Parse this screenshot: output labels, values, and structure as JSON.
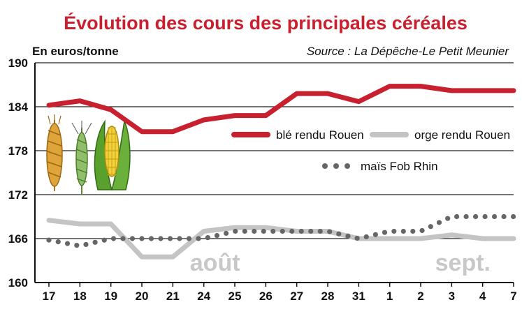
{
  "chart_data": {
    "type": "line",
    "title": "Évolution des cours des principales céréales",
    "unit_label": "En euros/tonne",
    "source": "Source : La Dépêche-Le Petit Meunier",
    "categories": [
      "17",
      "18",
      "19",
      "20",
      "21",
      "24",
      "25",
      "26",
      "27",
      "28",
      "31",
      "1",
      "2",
      "3",
      "4",
      "7"
    ],
    "month_labels": [
      {
        "label": "août",
        "at_category": "24"
      },
      {
        "label": "sept.",
        "at_category": "3"
      }
    ],
    "ylim": [
      160,
      190
    ],
    "yticks": [
      160,
      166,
      172,
      178,
      184,
      190
    ],
    "grid": true,
    "legend_placement": "center-right",
    "series": [
      {
        "name": "blé rendu Rouen",
        "color": "#c8202f",
        "style": "solid",
        "values": [
          184.2,
          184.8,
          183.6,
          180.6,
          180.6,
          182.2,
          182.8,
          182.8,
          185.8,
          185.8,
          184.7,
          186.8,
          186.8,
          186.2,
          186.2,
          186.2
        ]
      },
      {
        "name": "orge rendu Rouen",
        "color": "#c4c4c4",
        "style": "solid",
        "values": [
          168.5,
          168.0,
          168.0,
          163.5,
          163.5,
          167.0,
          167.5,
          167.5,
          167.0,
          167.0,
          166.0,
          166.0,
          166.0,
          166.5,
          166.0,
          166.0
        ]
      },
      {
        "name": "maïs Fob Rhin",
        "color": "#666666",
        "style": "dotted",
        "values": [
          165.8,
          165.0,
          166.0,
          166.0,
          166.0,
          166.0,
          167.0,
          167.0,
          167.0,
          167.0,
          166.0,
          167.0,
          167.0,
          169.0,
          169.0,
          169.0
        ]
      }
    ]
  },
  "icons": [
    "wheat-ear-icon",
    "barley-ear-icon",
    "corn-cob-icon"
  ]
}
